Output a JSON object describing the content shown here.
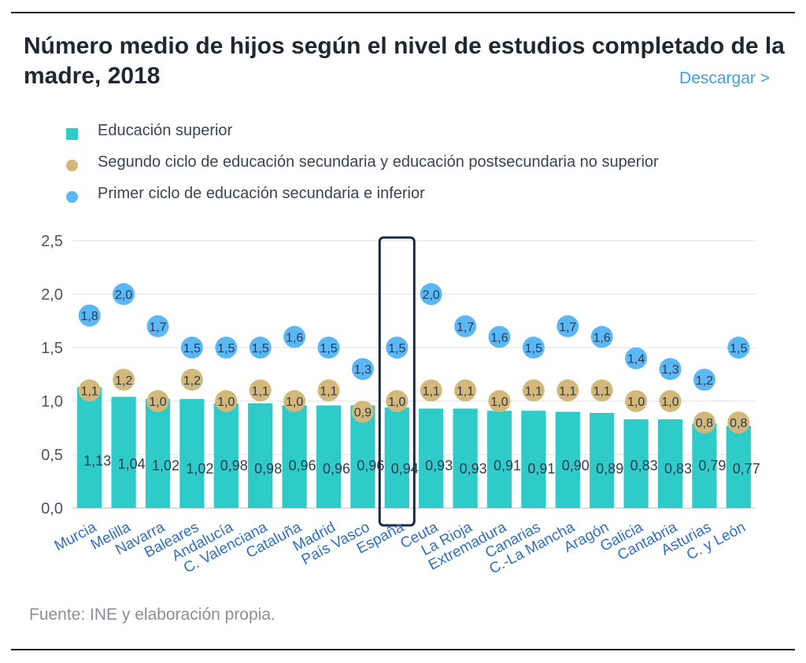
{
  "header": {
    "title": "Número medio de hijos según el nivel de estudios completado de la madre, 2018",
    "download_label": "Descargar >"
  },
  "footer": {
    "source": "Fuente: INE y elaboración propia."
  },
  "colors": {
    "bars": "#2ecbc8",
    "secondary": "#d4b87a",
    "primary": "#5cb8f4",
    "highlight": "#1a2a44"
  },
  "chart_data": {
    "type": "bar",
    "categories": [
      "Murcia",
      "Melilla",
      "Navarra",
      "Baleares",
      "Andalucía",
      "C. Valenciana",
      "Cataluña",
      "Madrid",
      "País Vasco",
      "España",
      "Ceuta",
      "La Rioja",
      "Extremadura",
      "Canarias",
      "C.-La Mancha",
      "Aragón",
      "Galicia",
      "Cantabria",
      "Asturias",
      "C. y León"
    ],
    "highlight_category": "España",
    "ylim": [
      0,
      2.5
    ],
    "yticks": [
      "0,0",
      "0,5",
      "1,0",
      "1,5",
      "2,0",
      "2,5"
    ],
    "series": [
      {
        "name": "Educación superior",
        "type": "bar",
        "values": [
          1.13,
          1.04,
          1.02,
          1.02,
          0.98,
          0.98,
          0.96,
          0.96,
          0.96,
          0.94,
          0.93,
          0.93,
          0.91,
          0.91,
          0.9,
          0.89,
          0.83,
          0.83,
          0.79,
          0.77
        ],
        "labels": [
          "1,13",
          "1,04",
          "1,02",
          "1,02",
          "0,98",
          "0,98",
          "0,96",
          "0,96",
          "0,96",
          "0,94",
          "0,93",
          "0,93",
          "0,91",
          "0,91",
          "0,90",
          "0,89",
          "0,83",
          "0,83",
          "0,79",
          "0,77"
        ]
      },
      {
        "name": "Segundo ciclo de educación secundaria y educación postsecundaria no superior",
        "type": "dot",
        "values": [
          1.1,
          1.2,
          1.0,
          1.2,
          1.0,
          1.1,
          1.0,
          1.1,
          0.9,
          1.0,
          1.1,
          1.1,
          1.0,
          1.1,
          1.1,
          1.1,
          1.0,
          1.0,
          0.8,
          0.8
        ],
        "labels": [
          "1,1",
          "1,2",
          "1,0",
          "1,2",
          "1,0",
          "1,1",
          "1,0",
          "1,1",
          "0,9",
          "1,0",
          "1,1",
          "1,1",
          "1,0",
          "1,1",
          "1,1",
          "1,1",
          "1,0",
          "1,0",
          "0,8",
          "0,8"
        ]
      },
      {
        "name": "Primer ciclo de educación secundaria e inferior",
        "type": "dot",
        "values": [
          1.8,
          2.0,
          1.7,
          1.5,
          1.5,
          1.5,
          1.6,
          1.5,
          1.3,
          1.5,
          2.0,
          1.7,
          1.6,
          1.5,
          1.7,
          1.6,
          1.4,
          1.3,
          1.2,
          1.5
        ],
        "labels": [
          "1,8",
          "2,0",
          "1,7",
          "1,5",
          "1,5",
          "1,5",
          "1,6",
          "1,5",
          "1,3",
          "1,5",
          "2,0",
          "1,7",
          "1,6",
          "1,5",
          "1,7",
          "1,6",
          "1,4",
          "1,3",
          "1,2",
          "1,5"
        ]
      }
    ]
  }
}
